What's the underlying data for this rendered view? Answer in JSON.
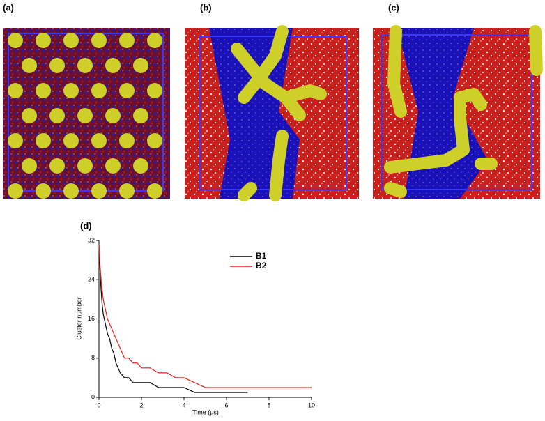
{
  "panels": [
    {
      "label": "(a)"
    },
    {
      "label": "(b)"
    },
    {
      "label": "(c)"
    }
  ],
  "chart_data": {
    "type": "line",
    "title": "(d)",
    "x_label": "Time (μs)",
    "y_label": "Cluster number",
    "x": [
      0,
      0.05,
      0.1,
      0.15,
      0.2,
      0.3,
      0.4,
      0.5,
      0.6,
      0.7,
      0.8,
      0.9,
      1.0,
      1.2,
      1.4,
      1.6,
      1.8,
      2.0,
      2.4,
      2.8,
      3.2,
      3.6,
      4.0,
      4.5,
      5,
      5.5,
      6,
      7,
      8,
      9,
      10
    ],
    "series": [
      {
        "name": "B1",
        "color": "#000000",
        "values": [
          31,
          26,
          22,
          19,
          17,
          15,
          13,
          12,
          10,
          9,
          7,
          6,
          5,
          4,
          4,
          3,
          3,
          3,
          3,
          2,
          2,
          2,
          2,
          1,
          1,
          1,
          1,
          1,
          null,
          null,
          null
        ]
      },
      {
        "name": "B2",
        "color": "#e8201a",
        "values": [
          31,
          27,
          24,
          22,
          20,
          18,
          16,
          15,
          14,
          13,
          12,
          11,
          10,
          8,
          8,
          7,
          7,
          6,
          6,
          5,
          5,
          4,
          4,
          3,
          2,
          2,
          2,
          2,
          2,
          2,
          2
        ]
      }
    ],
    "xlim": [
      0,
      10
    ],
    "xticks": [
      0,
      2,
      4,
      6,
      8,
      10
    ],
    "ylim": [
      0,
      32
    ],
    "yticks": [
      0,
      8,
      16,
      24,
      32
    ]
  }
}
